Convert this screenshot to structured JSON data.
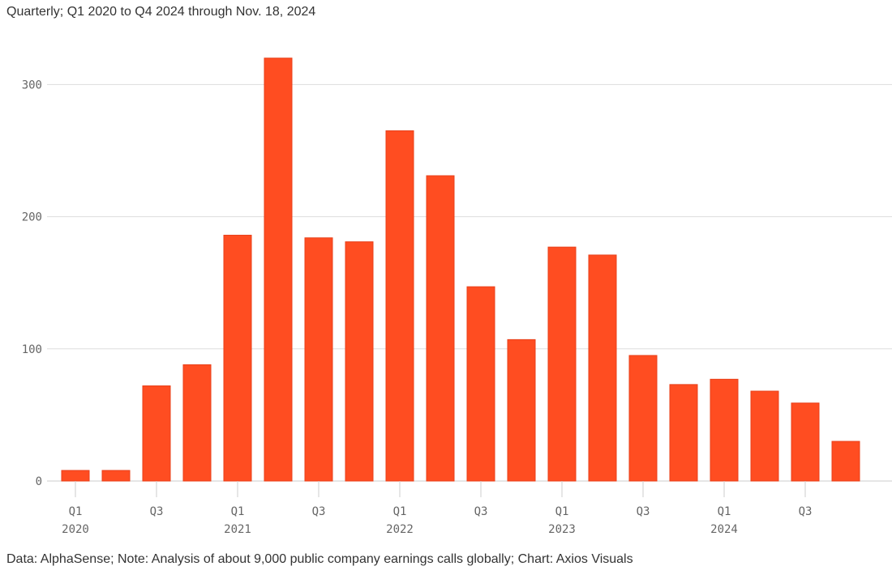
{
  "subtitle": "Quarterly; Q1 2020 to Q4 2024 through Nov. 18, 2024",
  "source": "Data: AlphaSense; Note: Analysis of about 9,000 public company earnings calls globally; Chart: Axios Visuals",
  "chart_data": {
    "type": "bar",
    "title": "",
    "xlabel": "",
    "ylabel": "",
    "categories": [
      "Q1 2020",
      "Q2 2020",
      "Q3 2020",
      "Q4 2020",
      "Q1 2021",
      "Q2 2021",
      "Q3 2021",
      "Q4 2021",
      "Q1 2022",
      "Q2 2022",
      "Q3 2022",
      "Q4 2022",
      "Q1 2023",
      "Q2 2023",
      "Q3 2023",
      "Q4 2023",
      "Q1 2024",
      "Q2 2024",
      "Q3 2024",
      "Q4 2024"
    ],
    "values": [
      8,
      8,
      72,
      88,
      186,
      320,
      184,
      181,
      265,
      231,
      147,
      107,
      177,
      171,
      95,
      73,
      77,
      68,
      59,
      30
    ],
    "x_tick_labels": [
      {
        "index": 0,
        "line1": "Q1",
        "line2": "2020"
      },
      {
        "index": 2,
        "line1": "Q3",
        "line2": ""
      },
      {
        "index": 4,
        "line1": "Q1",
        "line2": "2021"
      },
      {
        "index": 6,
        "line1": "Q3",
        "line2": ""
      },
      {
        "index": 8,
        "line1": "Q1",
        "line2": "2022"
      },
      {
        "index": 10,
        "line1": "Q3",
        "line2": ""
      },
      {
        "index": 12,
        "line1": "Q1",
        "line2": "2023"
      },
      {
        "index": 14,
        "line1": "Q3",
        "line2": ""
      },
      {
        "index": 16,
        "line1": "Q1",
        "line2": "2024"
      },
      {
        "index": 18,
        "line1": "Q3",
        "line2": ""
      }
    ],
    "y_ticks": [
      0,
      100,
      200,
      300
    ],
    "ylim": [
      0,
      320
    ],
    "grid": true,
    "colors": {
      "bar": "#ff4d21",
      "bar_edge": "#e8401a",
      "grid": "#dddddd",
      "baseline": "#cccccc"
    }
  }
}
